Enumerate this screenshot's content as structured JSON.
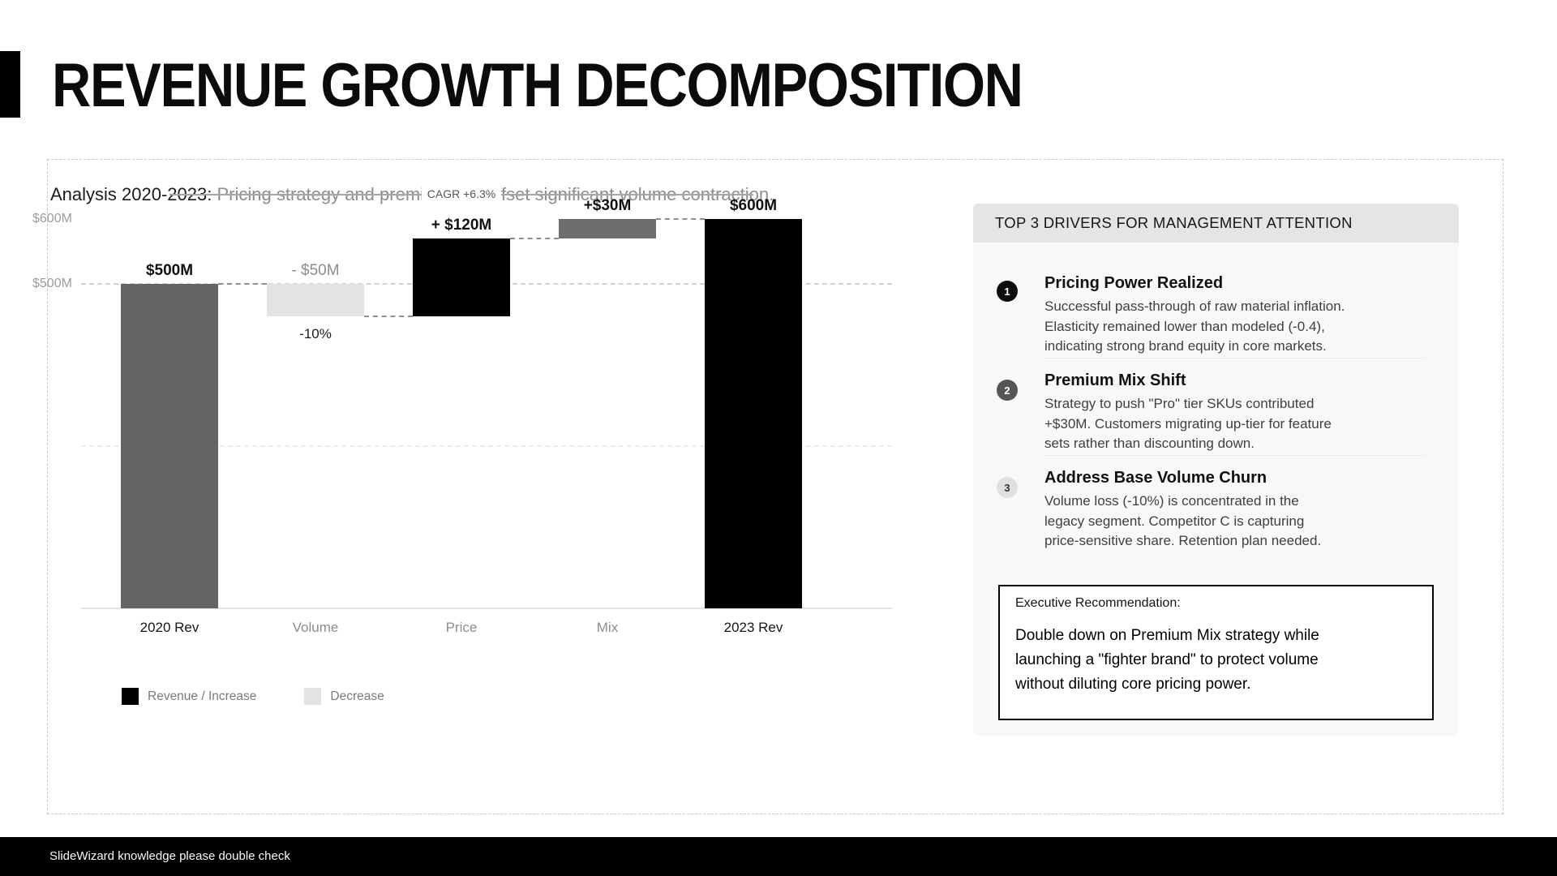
{
  "slide": {
    "title": "REVENUE GROWTH DECOMPOSITION",
    "subtitle_strong": "Analysis 2020-2023:",
    "subtitle_rest": " Pricing strategy and premium mix offset significant volume contraction.",
    "footer": "SlideWizard knowledge please double check"
  },
  "chart_data": {
    "type": "bar",
    "subtype": "waterfall",
    "categories": [
      "2020 Rev",
      "Volume",
      "Price",
      "Mix",
      "2023 Rev"
    ],
    "values": [
      500,
      -50,
      120,
      30,
      600
    ],
    "value_unit": "$M",
    "bar_labels": [
      "$500M",
      "- $50M",
      "+ $120M",
      "+$30M",
      "$600M"
    ],
    "below_label": {
      "index": 1,
      "text": "-10%"
    },
    "bar_colors": [
      "#646464",
      "#e3e3e3",
      "#000000",
      "#6e6e6e",
      "#000000"
    ],
    "annotation": "CAGR +6.3%",
    "y_ticks": [
      {
        "label": "$600M",
        "value": 600
      },
      {
        "label": "$500M",
        "value": 500
      }
    ],
    "gridlines": [
      {
        "value": 500,
        "color": "#d2d2d2"
      },
      {
        "value": 250,
        "color": "#ebebeb"
      }
    ],
    "ylim": [
      0,
      650
    ],
    "grid": "horizontal-dashed",
    "legend_position": "bottom-left",
    "connector_style": "dashed",
    "legend": [
      {
        "label": "Revenue / Increase",
        "color": "#000000"
      },
      {
        "label": "Decrease",
        "color": "#e3e3e3"
      }
    ]
  },
  "panel": {
    "header": "TOP 3 DRIVERS FOR MANAGEMENT ATTENTION",
    "items": [
      {
        "num": "1",
        "title": "Pricing Power Realized",
        "body_lines": [
          "Successful pass-through of raw material inflation.",
          "Elasticity remained lower than modeled (-0.4),",
          "indicating strong brand equity in core markets."
        ]
      },
      {
        "num": "2",
        "title": "Premium Mix Shift",
        "body_lines": [
          "Strategy to push \"Pro\" tier SKUs contributed",
          "+$30M. Customers migrating up-tier for feature",
          "sets rather than discounting down."
        ]
      },
      {
        "num": "3",
        "title": "Address Base Volume Churn",
        "body_lines": [
          "Volume loss (-10%) is concentrated in the",
          "legacy segment. Competitor C is capturing",
          "price-sensitive share. Retention plan needed."
        ]
      }
    ],
    "recommendation_label": "Executive Recommendation:",
    "recommendation_lines": [
      "Double down on Premium Mix strategy while",
      "launching a \"fighter brand\" to protect volume",
      "without diluting core pricing power."
    ]
  }
}
